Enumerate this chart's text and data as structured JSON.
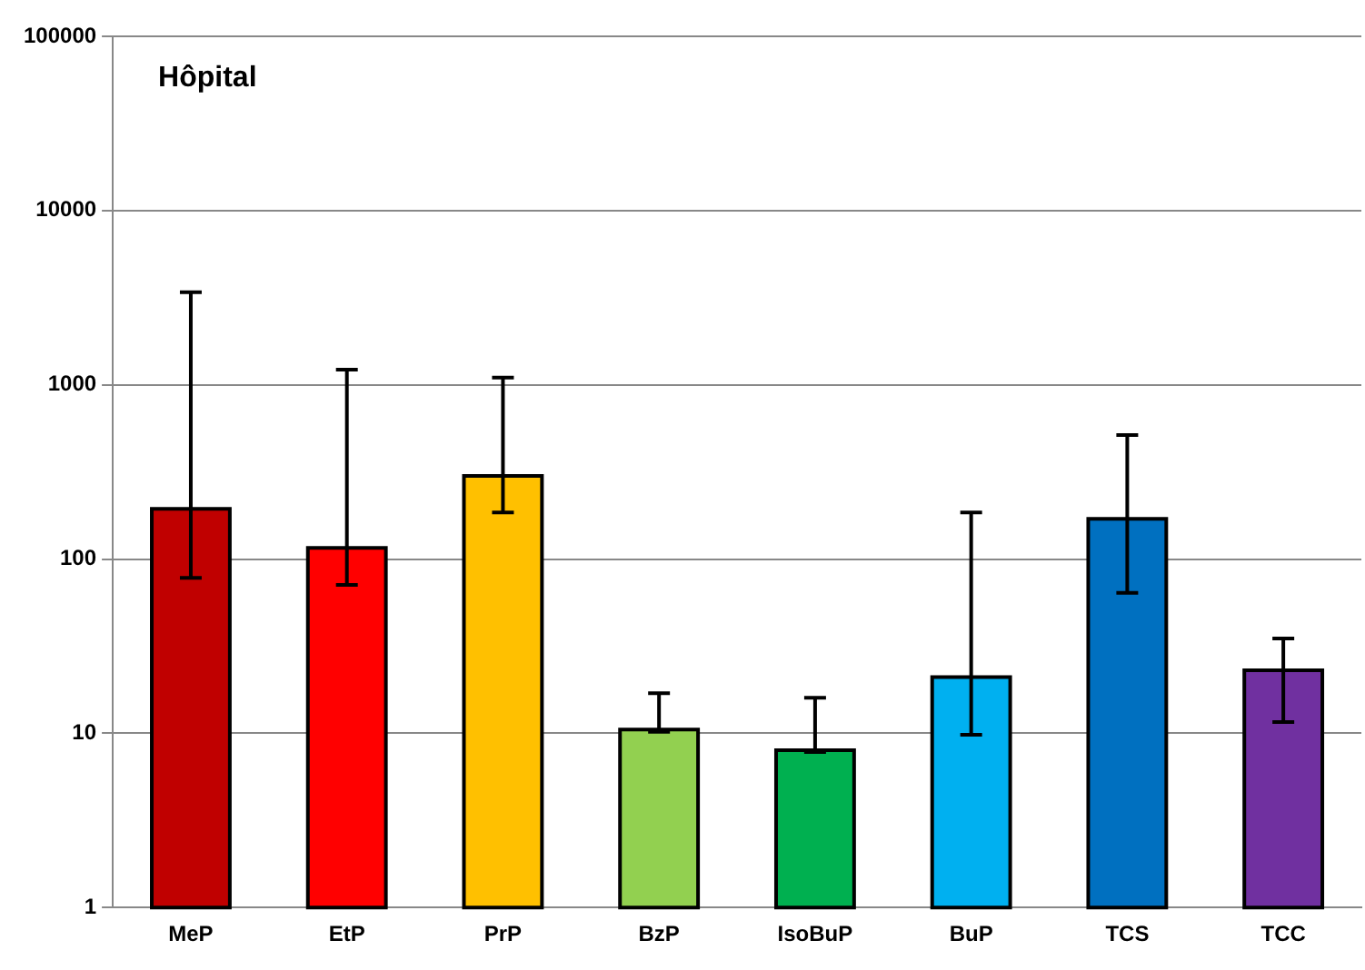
{
  "chart_data": {
    "type": "bar",
    "title": "Hôpital",
    "categories": [
      "MeP",
      "EtP",
      "PrP",
      "BzP",
      "IsoBuP",
      "BuP",
      "TCS",
      "TCC"
    ],
    "values": [
      194,
      116,
      300,
      10.5,
      8,
      21,
      170,
      23
    ],
    "colors": [
      "#c00000",
      "#ff0000",
      "#ffc000",
      "#92d050",
      "#00b050",
      "#00b0f0",
      "#0070c0",
      "#7030a0"
    ],
    "errors": [
      [
        78,
        3400
      ],
      [
        71,
        1220
      ],
      [
        185,
        1100
      ],
      [
        10.2,
        17
      ],
      [
        7.8,
        16
      ],
      [
        9.8,
        185
      ],
      [
        64,
        515
      ],
      [
        11.6,
        35
      ]
    ],
    "log": true,
    "ylim": [
      1,
      100000
    ],
    "yticks": [
      1,
      10,
      100,
      1000,
      10000,
      100000
    ],
    "grid": "y",
    "legend": false
  }
}
